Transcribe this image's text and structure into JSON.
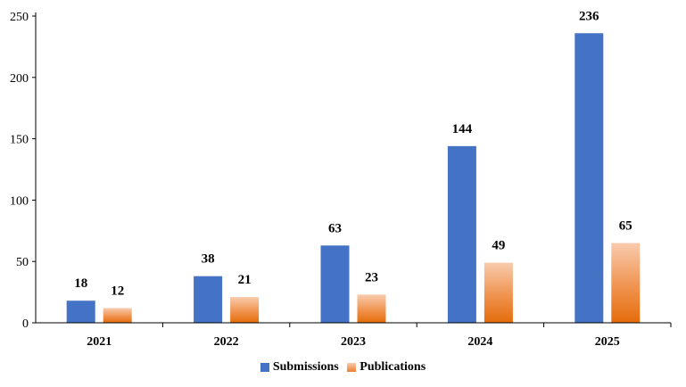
{
  "chart_data": {
    "type": "bar",
    "categories": [
      "2021",
      "2022",
      "2023",
      "2024",
      "2025"
    ],
    "series": [
      {
        "name": "Submissions",
        "values": [
          18,
          38,
          63,
          144,
          236
        ],
        "color": "#4472C4"
      },
      {
        "name": "Publications",
        "values": [
          12,
          21,
          23,
          49,
          65
        ],
        "color": "#ED7D31"
      }
    ],
    "ylim": [
      0,
      250
    ],
    "yticks": [
      0,
      50,
      100,
      150,
      200,
      250
    ],
    "xlabel": "",
    "ylabel": "",
    "grid": false,
    "data_labels": true,
    "legend_position": "bottom"
  }
}
